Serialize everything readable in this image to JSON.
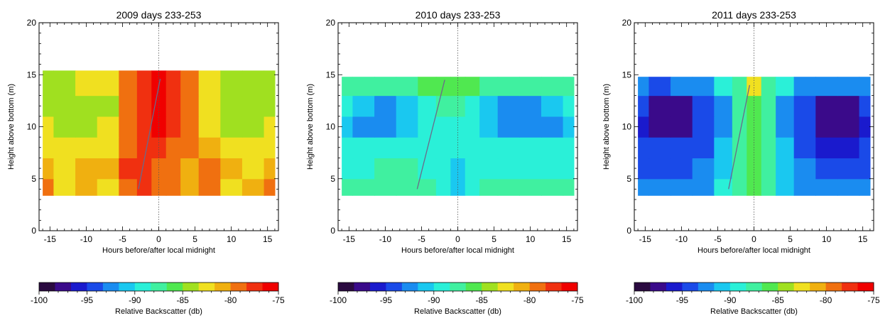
{
  "colorbar": {
    "label": "Relative Backscatter (db)",
    "ticks": [
      -100,
      -95,
      -90,
      -85,
      -80,
      -75
    ],
    "range": [
      -100,
      -75
    ],
    "colors": [
      "#2a0a40",
      "#3a0a8a",
      "#1a1acd",
      "#1a4ae8",
      "#1a8cf0",
      "#1ac8f0",
      "#2af0d8",
      "#40f0a0",
      "#50e850",
      "#a0e020",
      "#f0e020",
      "#f0b010",
      "#f07010",
      "#f03010",
      "#f00000"
    ]
  },
  "chart_data": [
    {
      "type": "heatmap",
      "title": "2009 days 233-253",
      "xlabel": "Hours before/after local midnight",
      "ylabel": "Height above bottom (m)",
      "xlim": [
        -16.5,
        16.5
      ],
      "ylim": [
        0,
        20
      ],
      "xticks": [
        -15,
        -10,
        -5,
        0,
        5,
        10,
        15
      ],
      "yticks": [
        0,
        5,
        10,
        15,
        20
      ],
      "data_range_y": [
        3.4,
        15.4
      ],
      "values_x": [
        -16,
        -13,
        -10,
        -7,
        -4,
        -2,
        0,
        2,
        4,
        7,
        10,
        13,
        16
      ],
      "values_y": [
        4,
        6,
        8,
        10,
        12,
        14
      ],
      "values_db": [
        [
          -80,
          -82,
          -81,
          -82,
          -79,
          -78,
          -80,
          -79,
          -81,
          -79,
          -82,
          -81,
          -80
        ],
        [
          -81,
          -82,
          -81,
          -81,
          -78,
          -77,
          -79,
          -80,
          -81,
          -80,
          -81,
          -82,
          -81
        ],
        [
          -82,
          -83,
          -83,
          -82,
          -79,
          -77,
          -77,
          -79,
          -80,
          -81,
          -82,
          -82,
          -82
        ],
        [
          -83,
          -84,
          -84,
          -83,
          -79,
          -77,
          -76,
          -78,
          -80,
          -82,
          -84,
          -84,
          -83
        ],
        [
          -84,
          -84,
          -84,
          -84,
          -80,
          -77,
          -76,
          -77,
          -80,
          -83,
          -84,
          -84,
          -84
        ],
        [
          -84,
          -84,
          -83,
          -83,
          -80,
          -77,
          -76,
          -77,
          -80,
          -83,
          -84,
          -84,
          -84
        ]
      ],
      "trend_line": {
        "x": [
          -2.8,
          0.2
        ],
        "y": [
          4,
          14.6
        ]
      }
    },
    {
      "type": "heatmap",
      "title": "2010 days 233-253",
      "xlabel": "Hours before/after local midnight",
      "ylabel": "Height above bottom (m)",
      "xlim": [
        -16.5,
        16.5
      ],
      "ylim": [
        0,
        20
      ],
      "xticks": [
        -15,
        -10,
        -5,
        0,
        5,
        10,
        15
      ],
      "yticks": [
        0,
        5,
        10,
        15,
        20
      ],
      "data_range_y": [
        3.4,
        14.8
      ],
      "values_x": [
        -16,
        -13,
        -10,
        -7,
        -4,
        -2,
        0,
        2,
        4,
        7,
        10,
        13,
        16
      ],
      "values_y": [
        4,
        6,
        8,
        10,
        12,
        14
      ],
      "values_db": [
        [
          -88,
          -88,
          -87,
          -87,
          -88,
          -90,
          -91,
          -89,
          -88,
          -88,
          -88,
          -87,
          -88
        ],
        [
          -89,
          -89,
          -88,
          -88,
          -89,
          -90,
          -91,
          -90,
          -89,
          -89,
          -89,
          -89,
          -89
        ],
        [
          -90,
          -90,
          -90,
          -90,
          -90,
          -90,
          -90,
          -90,
          -90,
          -90,
          -90,
          -90,
          -90
        ],
        [
          -91,
          -92,
          -92,
          -91,
          -90,
          -89,
          -89,
          -90,
          -91,
          -92,
          -92,
          -92,
          -91
        ],
        [
          -90,
          -91,
          -92,
          -91,
          -89,
          -88,
          -88,
          -89,
          -91,
          -92,
          -92,
          -91,
          -90
        ],
        [
          -88,
          -88,
          -88,
          -87,
          -86,
          -86,
          -86,
          -86,
          -87,
          -88,
          -88,
          -88,
          -88
        ]
      ],
      "trend_line": {
        "x": [
          -5.6,
          -1.8
        ],
        "y": [
          4,
          14.5
        ]
      }
    },
    {
      "type": "heatmap",
      "title": "2011 days 233-253",
      "xlabel": "Hours before/after local midnight",
      "ylabel": "Height above bottom (m)",
      "xlim": [
        -16.5,
        16.5
      ],
      "ylim": [
        0,
        20
      ],
      "xticks": [
        -15,
        -10,
        -5,
        0,
        5,
        10,
        15
      ],
      "yticks": [
        0,
        5,
        10,
        15,
        20
      ],
      "data_range_y": [
        3.4,
        14.8
      ],
      "values_x": [
        -16,
        -13,
        -10,
        -7,
        -4,
        -2,
        0,
        2,
        4,
        7,
        10,
        13,
        16
      ],
      "values_y": [
        4,
        6,
        8,
        10,
        12,
        14
      ],
      "values_db": [
        [
          -93,
          -93,
          -93,
          -92,
          -90,
          -88,
          -86,
          -88,
          -91,
          -92,
          -93,
          -93,
          -93
        ],
        [
          -94,
          -94,
          -94,
          -93,
          -91,
          -88,
          -86,
          -88,
          -91,
          -93,
          -94,
          -94,
          -94
        ],
        [
          -95,
          -95,
          -95,
          -94,
          -91,
          -88,
          -86,
          -88,
          -91,
          -94,
          -96,
          -96,
          -95
        ],
        [
          -96,
          -97,
          -97,
          -95,
          -92,
          -88,
          -86,
          -88,
          -92,
          -95,
          -97,
          -97,
          -96
        ],
        [
          -95,
          -97,
          -97,
          -95,
          -92,
          -88,
          -86,
          -88,
          -92,
          -95,
          -97,
          -97,
          -95
        ],
        [
          -93,
          -94,
          -93,
          -92,
          -90,
          -87,
          -82,
          -87,
          -90,
          -92,
          -93,
          -93,
          -93
        ]
      ],
      "trend_line": {
        "x": [
          -3.5,
          -0.6
        ],
        "y": [
          4,
          14.0
        ]
      }
    }
  ]
}
